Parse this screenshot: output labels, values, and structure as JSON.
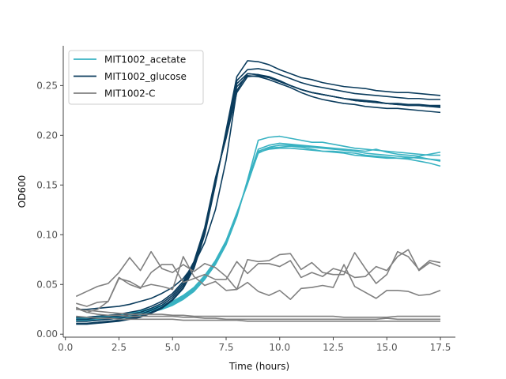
{
  "chart_data": {
    "type": "line",
    "xlabel": "Time (hours)",
    "ylabel": "OD600",
    "xlim": [
      -0.1,
      18.2
    ],
    "ylim": [
      -0.003,
      0.29
    ],
    "xticks": [
      0.0,
      2.5,
      5.0,
      7.5,
      10.0,
      12.5,
      15.0,
      17.5
    ],
    "xtick_labels": [
      "0.0",
      "2.5",
      "5.0",
      "7.5",
      "10.0",
      "12.5",
      "15.0",
      "17.5"
    ],
    "yticks": [
      0.0,
      0.05,
      0.1,
      0.15,
      0.2,
      0.25
    ],
    "ytick_labels": [
      "0.00",
      "0.05",
      "0.10",
      "0.15",
      "0.20",
      "0.25"
    ],
    "grid": false,
    "legend_position": "top-left",
    "legend": [
      {
        "label": "MIT1002_acetate",
        "color": "#38b2c2"
      },
      {
        "label": "MIT1002_glucose",
        "color": "#0b3c5d"
      },
      {
        "label": "MIT1002-C",
        "color": "#808080"
      }
    ],
    "x": [
      0.5,
      1.0,
      1.5,
      2.0,
      2.5,
      3.0,
      3.5,
      4.0,
      4.5,
      5.0,
      5.5,
      6.0,
      6.5,
      7.0,
      7.5,
      8.0,
      8.5,
      9.0,
      9.5,
      10.0,
      10.5,
      11.0,
      11.5,
      12.0,
      12.5,
      13.0,
      13.5,
      14.0,
      14.5,
      15.0,
      15.5,
      16.0,
      16.5,
      17.0,
      17.5
    ],
    "series": [
      {
        "group": "MIT1002_acetate",
        "color": "#38b2c2",
        "values": [
          0.013,
          0.013,
          0.014,
          0.015,
          0.016,
          0.017,
          0.019,
          0.022,
          0.025,
          0.029,
          0.035,
          0.043,
          0.055,
          0.07,
          0.09,
          0.118,
          0.155,
          0.195,
          0.198,
          0.199,
          0.197,
          0.195,
          0.193,
          0.193,
          0.191,
          0.189,
          0.187,
          0.186,
          0.185,
          0.184,
          0.183,
          0.182,
          0.181,
          0.18,
          0.18
        ]
      },
      {
        "group": "MIT1002_acetate",
        "color": "#38b2c2",
        "values": [
          0.014,
          0.014,
          0.015,
          0.016,
          0.017,
          0.018,
          0.02,
          0.023,
          0.026,
          0.03,
          0.036,
          0.044,
          0.056,
          0.071,
          0.091,
          0.119,
          0.154,
          0.186,
          0.19,
          0.192,
          0.191,
          0.19,
          0.189,
          0.188,
          0.187,
          0.186,
          0.185,
          0.184,
          0.186,
          0.183,
          0.181,
          0.18,
          0.179,
          0.181,
          0.183
        ]
      },
      {
        "group": "MIT1002_acetate",
        "color": "#38b2c2",
        "values": [
          0.015,
          0.015,
          0.016,
          0.017,
          0.018,
          0.019,
          0.021,
          0.024,
          0.027,
          0.031,
          0.037,
          0.045,
          0.057,
          0.072,
          0.092,
          0.12,
          0.153,
          0.184,
          0.188,
          0.19,
          0.19,
          0.189,
          0.188,
          0.187,
          0.186,
          0.185,
          0.184,
          0.182,
          0.181,
          0.18,
          0.179,
          0.178,
          0.177,
          0.176,
          0.174
        ]
      },
      {
        "group": "MIT1002_acetate",
        "color": "#38b2c2",
        "values": [
          0.016,
          0.016,
          0.017,
          0.018,
          0.019,
          0.02,
          0.022,
          0.025,
          0.028,
          0.032,
          0.038,
          0.046,
          0.058,
          0.073,
          0.093,
          0.121,
          0.152,
          0.182,
          0.187,
          0.188,
          0.189,
          0.188,
          0.186,
          0.184,
          0.183,
          0.182,
          0.18,
          0.179,
          0.178,
          0.177,
          0.177,
          0.176,
          0.174,
          0.172,
          0.169
        ]
      },
      {
        "group": "MIT1002_acetate",
        "color": "#38b2c2",
        "values": [
          0.017,
          0.017,
          0.018,
          0.019,
          0.02,
          0.021,
          0.023,
          0.026,
          0.029,
          0.033,
          0.039,
          0.047,
          0.059,
          0.074,
          0.094,
          0.122,
          0.151,
          0.183,
          0.186,
          0.187,
          0.187,
          0.186,
          0.185,
          0.184,
          0.184,
          0.183,
          0.182,
          0.18,
          0.179,
          0.178,
          0.177,
          0.177,
          0.178,
          0.176,
          0.175
        ]
      },
      {
        "group": "MIT1002_glucose",
        "color": "#0b3c5d",
        "values": [
          0.01,
          0.01,
          0.011,
          0.012,
          0.013,
          0.015,
          0.017,
          0.021,
          0.026,
          0.034,
          0.046,
          0.066,
          0.1,
          0.15,
          0.205,
          0.259,
          0.275,
          0.274,
          0.271,
          0.266,
          0.262,
          0.258,
          0.256,
          0.253,
          0.251,
          0.249,
          0.248,
          0.247,
          0.245,
          0.244,
          0.243,
          0.243,
          0.242,
          0.241,
          0.24
        ]
      },
      {
        "group": "MIT1002_glucose",
        "color": "#0b3c5d",
        "values": [
          0.011,
          0.011,
          0.012,
          0.013,
          0.014,
          0.016,
          0.018,
          0.022,
          0.027,
          0.035,
          0.047,
          0.067,
          0.101,
          0.151,
          0.203,
          0.255,
          0.266,
          0.267,
          0.265,
          0.261,
          0.257,
          0.253,
          0.25,
          0.248,
          0.246,
          0.244,
          0.242,
          0.241,
          0.24,
          0.239,
          0.238,
          0.237,
          0.237,
          0.236,
          0.236
        ]
      },
      {
        "group": "MIT1002_glucose",
        "color": "#0b3c5d",
        "values": [
          0.013,
          0.013,
          0.014,
          0.015,
          0.016,
          0.018,
          0.02,
          0.024,
          0.029,
          0.037,
          0.049,
          0.069,
          0.103,
          0.153,
          0.201,
          0.252,
          0.262,
          0.261,
          0.259,
          0.255,
          0.25,
          0.246,
          0.243,
          0.241,
          0.239,
          0.237,
          0.236,
          0.235,
          0.234,
          0.232,
          0.231,
          0.231,
          0.23,
          0.229,
          0.229
        ]
      },
      {
        "group": "MIT1002_glucose",
        "color": "#0b3c5d",
        "values": [
          0.015,
          0.015,
          0.016,
          0.017,
          0.018,
          0.02,
          0.022,
          0.026,
          0.031,
          0.039,
          0.051,
          0.071,
          0.105,
          0.155,
          0.199,
          0.249,
          0.26,
          0.259,
          0.256,
          0.252,
          0.248,
          0.243,
          0.239,
          0.236,
          0.234,
          0.232,
          0.231,
          0.229,
          0.228,
          0.227,
          0.227,
          0.226,
          0.225,
          0.224,
          0.223
        ]
      },
      {
        "group": "MIT1002_glucose",
        "color": "#0b3c5d",
        "values": [
          0.017,
          0.017,
          0.018,
          0.019,
          0.02,
          0.022,
          0.024,
          0.028,
          0.033,
          0.041,
          0.053,
          0.073,
          0.107,
          0.157,
          0.197,
          0.243,
          0.259,
          0.26,
          0.258,
          0.254,
          0.25,
          0.246,
          0.243,
          0.241,
          0.239,
          0.237,
          0.235,
          0.234,
          0.233,
          0.232,
          0.232,
          0.231,
          0.231,
          0.23,
          0.23
        ]
      },
      {
        "group": "MIT1002_glucose",
        "color": "#0b3c5d",
        "values": [
          0.025,
          0.025,
          0.026,
          0.027,
          0.028,
          0.03,
          0.033,
          0.036,
          0.041,
          0.047,
          0.056,
          0.07,
          0.092,
          0.125,
          0.175,
          0.245,
          0.262,
          0.261,
          0.258,
          0.254,
          0.25,
          0.246,
          0.243,
          0.241,
          0.239,
          0.237,
          0.235,
          0.234,
          0.233,
          0.232,
          0.231,
          0.23,
          0.23,
          0.229,
          0.228
        ]
      },
      {
        "group": "MIT1002-C",
        "color": "#808080",
        "values": [
          0.038,
          0.043,
          0.048,
          0.051,
          0.062,
          0.077,
          0.064,
          0.083,
          0.066,
          0.062,
          0.07,
          0.063,
          0.071,
          0.067,
          0.058,
          0.045,
          0.075,
          0.073,
          0.074,
          0.08,
          0.081,
          0.065,
          0.072,
          0.062,
          0.06,
          0.06,
          0.082,
          0.066,
          0.051,
          0.06,
          0.083,
          0.078,
          0.065,
          0.074,
          0.072
        ]
      },
      {
        "group": "MIT1002-C",
        "color": "#808080",
        "values": [
          0.031,
          0.028,
          0.032,
          0.033,
          0.057,
          0.05,
          0.046,
          0.062,
          0.07,
          0.07,
          0.052,
          0.056,
          0.06,
          0.055,
          0.055,
          0.073,
          0.061,
          0.071,
          0.071,
          0.068,
          0.074,
          0.057,
          0.062,
          0.058,
          0.066,
          0.063,
          0.057,
          0.058,
          0.068,
          0.064,
          0.078,
          0.085,
          0.064,
          0.072,
          0.068
        ]
      },
      {
        "group": "MIT1002-C",
        "color": "#808080",
        "values": [
          0.026,
          0.022,
          0.025,
          0.033,
          0.056,
          0.053,
          0.047,
          0.05,
          0.048,
          0.045,
          0.078,
          0.058,
          0.049,
          0.053,
          0.044,
          0.045,
          0.052,
          0.043,
          0.039,
          0.044,
          0.035,
          0.046,
          0.047,
          0.049,
          0.047,
          0.07,
          0.048,
          0.042,
          0.036,
          0.044,
          0.044,
          0.043,
          0.039,
          0.04,
          0.044
        ]
      },
      {
        "group": "MIT1002-C",
        "color": "#808080",
        "values": [
          0.025,
          0.024,
          0.023,
          0.022,
          0.021,
          0.02,
          0.02,
          0.02,
          0.02,
          0.019,
          0.019,
          0.018,
          0.018,
          0.018,
          0.018,
          0.018,
          0.018,
          0.018,
          0.018,
          0.018,
          0.018,
          0.018,
          0.018,
          0.018,
          0.018,
          0.017,
          0.017,
          0.017,
          0.017,
          0.017,
          0.018,
          0.018,
          0.018,
          0.018,
          0.018
        ]
      },
      {
        "group": "MIT1002-C",
        "color": "#808080",
        "values": [
          0.027,
          0.022,
          0.02,
          0.019,
          0.019,
          0.018,
          0.018,
          0.018,
          0.018,
          0.018,
          0.017,
          0.017,
          0.016,
          0.016,
          0.015,
          0.015,
          0.015,
          0.015,
          0.015,
          0.015,
          0.015,
          0.015,
          0.015,
          0.015,
          0.015,
          0.015,
          0.015,
          0.015,
          0.015,
          0.016,
          0.015,
          0.015,
          0.015,
          0.015,
          0.015
        ]
      },
      {
        "group": "MIT1002-C",
        "color": "#808080",
        "values": [
          0.018,
          0.017,
          0.016,
          0.016,
          0.015,
          0.015,
          0.015,
          0.015,
          0.015,
          0.015,
          0.014,
          0.014,
          0.014,
          0.014,
          0.014,
          0.014,
          0.013,
          0.013,
          0.013,
          0.013,
          0.013,
          0.013,
          0.013,
          0.013,
          0.013,
          0.013,
          0.013,
          0.013,
          0.013,
          0.013,
          0.013,
          0.013,
          0.013,
          0.013,
          0.013
        ]
      }
    ]
  }
}
